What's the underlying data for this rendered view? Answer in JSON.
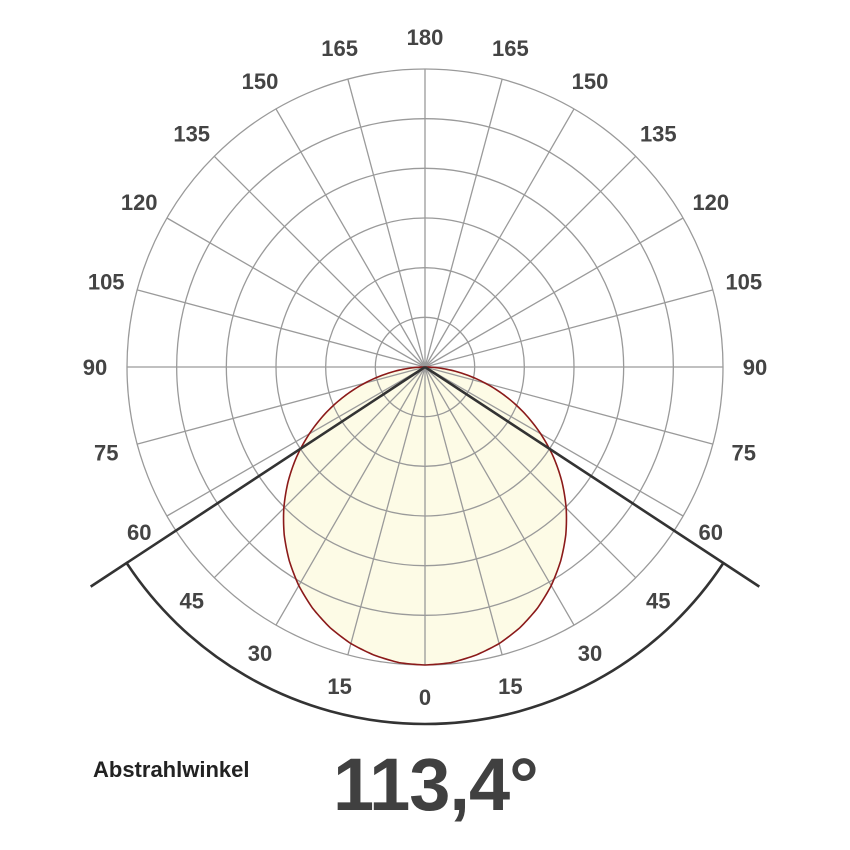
{
  "chart_data": {
    "type": "polar",
    "angle_labels_right": [
      "0",
      "15",
      "30",
      "45",
      "60",
      "75",
      "90",
      "105",
      "120",
      "135",
      "150",
      "165",
      "180"
    ],
    "angle_labels_left": [
      "15",
      "30",
      "45",
      "60",
      "75",
      "90",
      "105",
      "120",
      "135",
      "150",
      "165"
    ],
    "rings": 6,
    "radial_step_deg": 15,
    "grid": true,
    "curve": {
      "angles": [
        0,
        5,
        10,
        15,
        20,
        25,
        30,
        35,
        40,
        45,
        50,
        55,
        60,
        65,
        70,
        75,
        80,
        85,
        90
      ],
      "relative_intensity": [
        1.0,
        0.996,
        0.982,
        0.961,
        0.931,
        0.893,
        0.847,
        0.794,
        0.735,
        0.67,
        0.6,
        0.526,
        0.448,
        0.369,
        0.289,
        0.209,
        0.132,
        0.059,
        0.0
      ],
      "symmetric": true
    },
    "beam_angle_deg": 113.4,
    "colors": {
      "fill": "#fdfbe6",
      "stroke": "#8b1a1a",
      "grid": "#9a9a9a",
      "beam": "#333333",
      "text": "#444444"
    }
  },
  "caption": "Abstrahlwinkel",
  "value_text": "113,4°"
}
